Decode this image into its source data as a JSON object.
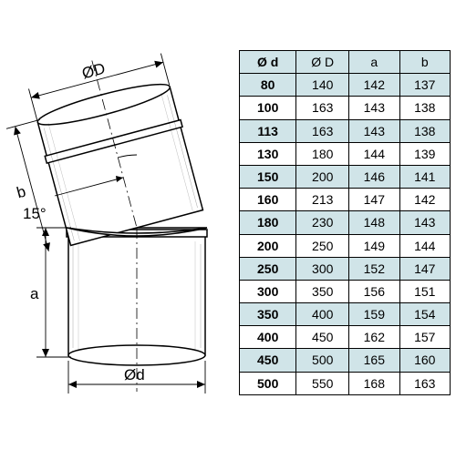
{
  "diagram": {
    "angle_label": "15°",
    "dim_a": "a",
    "dim_b": "b",
    "dim_d_small": "Ød",
    "dim_D_large": "ØD",
    "stroke": "#000000",
    "fill_body": "#ffffff",
    "fill_shade": "#e8e8e8",
    "dim_line_width": 1,
    "outline_width": 1.5
  },
  "table": {
    "header_bg": "#d0e4e8",
    "row_alt_bg": "#d0e4e8",
    "border_color": "#000000",
    "font_size": 14,
    "columns": [
      "Ø d",
      "Ø D",
      "a",
      "b"
    ],
    "col_widths_pct": [
      27,
      25,
      24,
      24
    ],
    "rows": [
      [
        "80",
        "140",
        "142",
        "137"
      ],
      [
        "100",
        "163",
        "143",
        "138"
      ],
      [
        "113",
        "163",
        "143",
        "138"
      ],
      [
        "130",
        "180",
        "144",
        "139"
      ],
      [
        "150",
        "200",
        "146",
        "141"
      ],
      [
        "160",
        "213",
        "147",
        "142"
      ],
      [
        "180",
        "230",
        "148",
        "143"
      ],
      [
        "200",
        "250",
        "149",
        "144"
      ],
      [
        "250",
        "300",
        "152",
        "147"
      ],
      [
        "300",
        "350",
        "156",
        "151"
      ],
      [
        "350",
        "400",
        "159",
        "154"
      ],
      [
        "400",
        "450",
        "162",
        "157"
      ],
      [
        "450",
        "500",
        "165",
        "160"
      ],
      [
        "500",
        "550",
        "168",
        "163"
      ]
    ],
    "alt_start_index": 0
  }
}
